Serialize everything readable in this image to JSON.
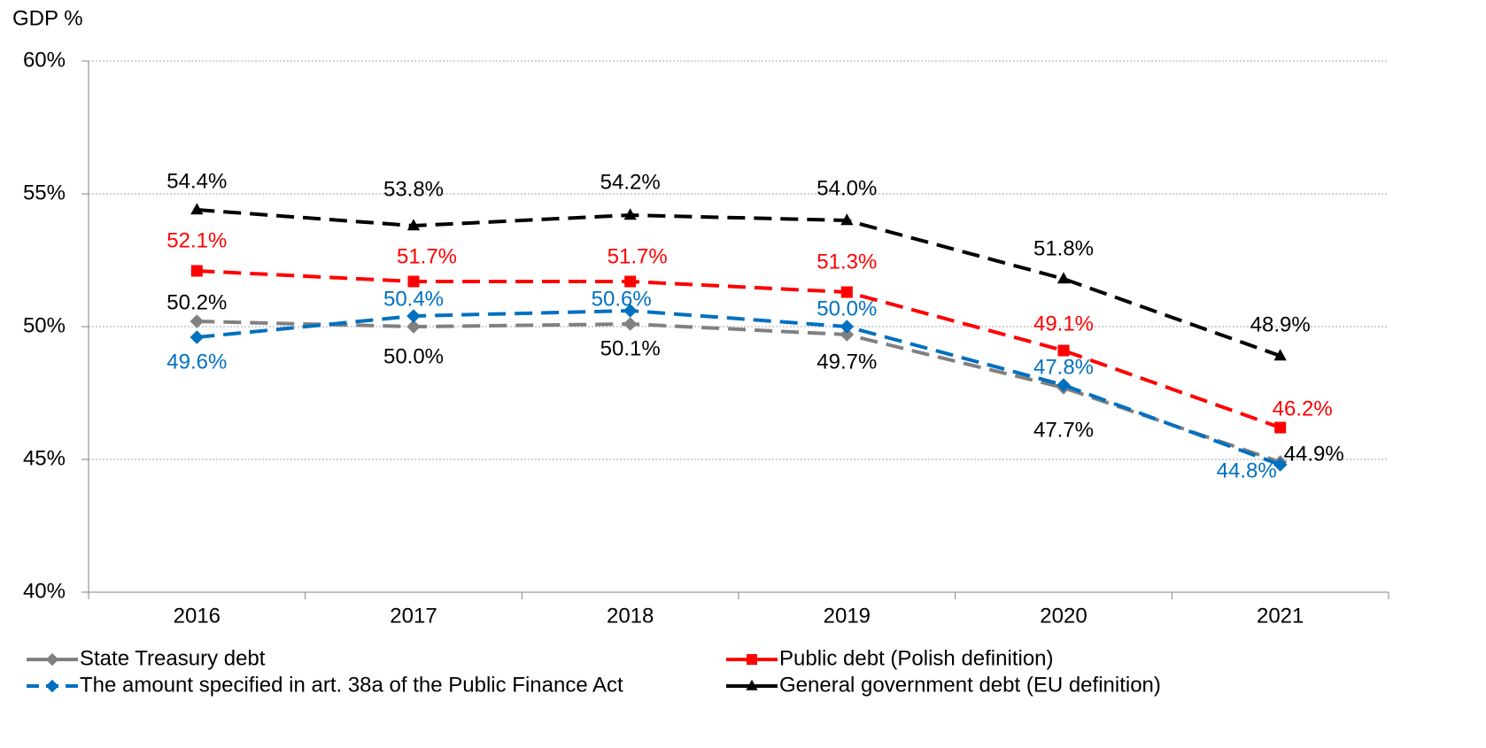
{
  "chart_data": {
    "type": "line",
    "y_label": "GDP %",
    "categories": [
      "2016",
      "2017",
      "2018",
      "2019",
      "2020",
      "2021"
    ],
    "ylim": [
      40,
      60
    ],
    "yticks": [
      {
        "value": 40,
        "label": "40%"
      },
      {
        "value": 45,
        "label": "45%"
      },
      {
        "value": 50,
        "label": "50%"
      },
      {
        "value": 55,
        "label": "55%"
      },
      {
        "value": 60,
        "label": "60%"
      }
    ],
    "grid": true,
    "legend": "bottom",
    "series": [
      {
        "name": "State Treasury debt",
        "color": "#808080",
        "label_color": "#000000",
        "marker": "diamond",
        "values": [
          50.2,
          50.0,
          50.1,
          49.7,
          47.7,
          44.9
        ],
        "value_labels": [
          "50.2%",
          "50.0%",
          "50.1%",
          "49.7%",
          "47.7%",
          "44.9%"
        ]
      },
      {
        "name": "Public debt (Polish definition)",
        "color": "#ff0000",
        "label_color": "#ff0000",
        "marker": "square",
        "values": [
          52.1,
          51.7,
          51.7,
          51.3,
          49.1,
          46.2
        ],
        "value_labels": [
          "52.1%",
          "51.7%",
          "51.7%",
          "51.3%",
          "49.1%",
          "46.2%"
        ]
      },
      {
        "name": "The amount specified in art. 38a of the Public Finance Act",
        "color": "#0070c0",
        "label_color": "#0070c0",
        "marker": "diamond",
        "values": [
          49.6,
          50.4,
          50.6,
          50.0,
          47.8,
          44.8
        ],
        "value_labels": [
          "49.6%",
          "50.4%",
          "50.6%",
          "50.0%",
          "47.8%",
          "44.8%"
        ]
      },
      {
        "name": "General government debt (EU definition)",
        "color": "#000000",
        "label_color": "#000000",
        "marker": "triangle",
        "values": [
          54.4,
          53.8,
          54.2,
          54.0,
          51.8,
          48.9
        ],
        "value_labels": [
          "54.4%",
          "53.8%",
          "54.2%",
          "54.0%",
          "51.8%",
          "48.9%"
        ]
      }
    ]
  }
}
